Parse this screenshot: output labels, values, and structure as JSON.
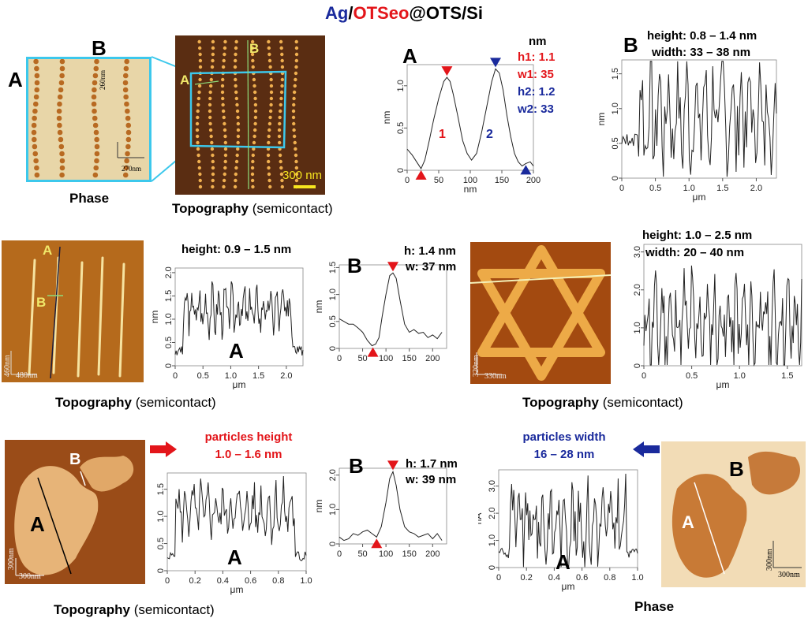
{
  "title": {
    "prefix": "Ag",
    "sep": "/",
    "mid": "OTSeo",
    "suffix": "@OTS/Si",
    "prefix_color": "#1a2a9c",
    "mid_color": "#e3151a"
  },
  "row1": {
    "phase_label": "Phase",
    "topo_label": "Topography",
    "topo_suffix": "(semicontact)",
    "letter_a": "A",
    "letter_b": "B",
    "phase_scale_v": "260nm",
    "phase_scale_h": "270nm",
    "topo_scale": "300 nm",
    "profile_a": {
      "letter": "A",
      "unit_header": "nm",
      "h1": "h1: 1.1",
      "w1": "w1: 35",
      "h2": "h2: 1.2",
      "w2": "w2: 33",
      "peak1": "1",
      "peak2": "2"
    },
    "profile_b": {
      "letter": "B",
      "height": "height:  0.8 – 1.4 nm",
      "width": "width:   33 – 38 nm"
    }
  },
  "row2": {
    "topo_label": "Topography",
    "topo_suffix": "(semicontact)",
    "img_a": "A",
    "img_b": "B",
    "scale_v": "460nm",
    "scale_h": "480nm",
    "profile_a": {
      "letter": "A",
      "height": "height:  0.9 – 1.5 nm"
    },
    "profile_b": {
      "letter": "B",
      "h": "h: 1.4 nm",
      "w": "w: 37 nm"
    },
    "star": {
      "scale_v": "320nm",
      "scale_h": "330nm",
      "label": "Topography",
      "suffix": "(semicontact)",
      "height": "height: 1.0 – 2.5 nm",
      "width": "width:  20 – 40 nm"
    }
  },
  "row3": {
    "topo_label": "Topography",
    "topo_suffix": "(semicontact)",
    "img_a": "A",
    "img_b": "B",
    "scale_v": "300nm",
    "scale_h": "300nm",
    "particles_height": "particles height",
    "particles_height_val": "1.0 – 1.6 nm",
    "particles_width": "particles width",
    "particles_width_val": "16 – 28 nm",
    "profile_a": {
      "letter": "A"
    },
    "profile_b": {
      "letter": "B",
      "h": "h: 1.7 nm",
      "w": "w:  39 nm"
    },
    "phase_profile": {
      "letter": "A"
    },
    "phase": {
      "label": "Phase",
      "img_a": "A",
      "img_b": "B",
      "scale_v": "300nm",
      "scale_h": "300nm"
    }
  },
  "chart_data": [
    {
      "type": "line",
      "name": "row1-profile-A",
      "xlabel": "nm",
      "ylabel": "nm",
      "xlim": [
        0,
        200
      ],
      "ylim": [
        0,
        1.25
      ],
      "xticks": [
        "0",
        "50",
        "100",
        "150",
        "200"
      ],
      "yticks": [
        "0",
        "0.5",
        "1.0"
      ],
      "x": [
        0,
        8,
        15,
        22,
        28,
        35,
        42,
        50,
        58,
        63,
        68,
        73,
        80,
        88,
        95,
        102,
        110,
        118,
        126,
        134,
        140,
        146,
        152,
        158,
        164,
        170,
        176,
        182,
        188,
        195,
        200
      ],
      "y": [
        0.25,
        0.18,
        0.1,
        0.02,
        0.12,
        0.35,
        0.6,
        0.85,
        1.05,
        1.1,
        1.05,
        0.9,
        0.65,
        0.35,
        0.2,
        0.12,
        0.2,
        0.45,
        0.75,
        1.05,
        1.2,
        1.15,
        0.95,
        0.65,
        0.4,
        0.2,
        0.1,
        0.05,
        0.08,
        0.1,
        0.05
      ]
    },
    {
      "type": "line",
      "name": "row1-profile-B",
      "xlabel": "μm",
      "ylabel": "nm",
      "xlim": [
        0,
        2.3
      ],
      "ylim": [
        0,
        1.7
      ],
      "xticks": [
        "0",
        "0.5",
        "1.0",
        "1.5",
        "2.0"
      ],
      "yticks": [
        "0",
        "0.5",
        "1.0",
        "1.5"
      ]
    },
    {
      "type": "line",
      "name": "row2-profile-A",
      "xlabel": "μm",
      "ylabel": "nm",
      "xlim": [
        0,
        2.3
      ],
      "ylim": [
        0,
        2.1
      ],
      "xticks": [
        "0",
        "0.5",
        "1.0",
        "1.5",
        "2.0"
      ],
      "yticks": [
        "0",
        "0.5",
        "1.0",
        "1.5",
        "2.0"
      ]
    },
    {
      "type": "line",
      "name": "row2-profile-B",
      "xlabel": "",
      "ylabel": "nm",
      "xlim": [
        0,
        230
      ],
      "ylim": [
        0,
        1.55
      ],
      "xticks": [
        "0",
        "50",
        "100",
        "150",
        "200"
      ],
      "yticks": [
        "0",
        "0.5",
        "1.0",
        "1.5"
      ],
      "x": [
        0,
        10,
        20,
        30,
        40,
        50,
        60,
        70,
        78,
        85,
        92,
        100,
        108,
        115,
        122,
        130,
        140,
        150,
        160,
        170,
        180,
        190,
        200,
        210,
        220
      ],
      "y": [
        0.55,
        0.5,
        0.45,
        0.45,
        0.38,
        0.3,
        0.15,
        0.05,
        0.08,
        0.2,
        0.6,
        1.0,
        1.35,
        1.4,
        1.3,
        0.9,
        0.45,
        0.3,
        0.35,
        0.28,
        0.3,
        0.2,
        0.25,
        0.18,
        0.3
      ]
    },
    {
      "type": "line",
      "name": "row2-star-profile",
      "xlabel": "μm",
      "ylabel": "",
      "xlim": [
        0,
        1.65
      ],
      "ylim": [
        0,
        3.2
      ],
      "xticks": [
        "0",
        "0.5",
        "1.0",
        "1.5"
      ],
      "yticks": [
        "0",
        "1.0",
        "2.0",
        "3.0"
      ]
    },
    {
      "type": "line",
      "name": "row3-profile-A",
      "xlabel": "μm",
      "ylabel": "nm",
      "xlim": [
        0,
        1.0
      ],
      "ylim": [
        0,
        1.8
      ],
      "xticks": [
        "0",
        "0.2",
        "0.4",
        "0.6",
        "0.8",
        "1.0"
      ],
      "yticks": [
        "0",
        "0.5",
        "1.0",
        "1.5"
      ]
    },
    {
      "type": "line",
      "name": "row3-profile-B",
      "xlabel": "",
      "ylabel": "nm",
      "xlim": [
        0,
        230
      ],
      "ylim": [
        0,
        2.2
      ],
      "xticks": [
        "0",
        "50",
        "100",
        "150",
        "200"
      ],
      "yticks": [
        "0",
        "1.0",
        "2.0"
      ],
      "x": [
        0,
        10,
        20,
        30,
        40,
        50,
        60,
        70,
        80,
        90,
        100,
        108,
        115,
        122,
        130,
        140,
        150,
        160,
        170,
        180,
        190,
        200,
        210,
        220
      ],
      "y": [
        0.2,
        0.1,
        0.15,
        0.3,
        0.25,
        0.35,
        0.4,
        0.3,
        0.2,
        0.5,
        1.2,
        1.9,
        2.1,
        1.7,
        1.0,
        0.5,
        0.35,
        0.3,
        0.2,
        0.25,
        0.3,
        0.15,
        0.3,
        0.1
      ]
    },
    {
      "type": "line",
      "name": "row3-phase-profile",
      "xlabel": "μm",
      "ylabel": "nA",
      "xlim": [
        0,
        1.0
      ],
      "ylim": [
        0,
        3.6
      ],
      "xticks": [
        "0",
        "0.2",
        "0.4",
        "0.6",
        "0.8",
        "1.0"
      ],
      "yticks": [
        "0",
        "1.0",
        "2.0",
        "3.0"
      ]
    }
  ]
}
